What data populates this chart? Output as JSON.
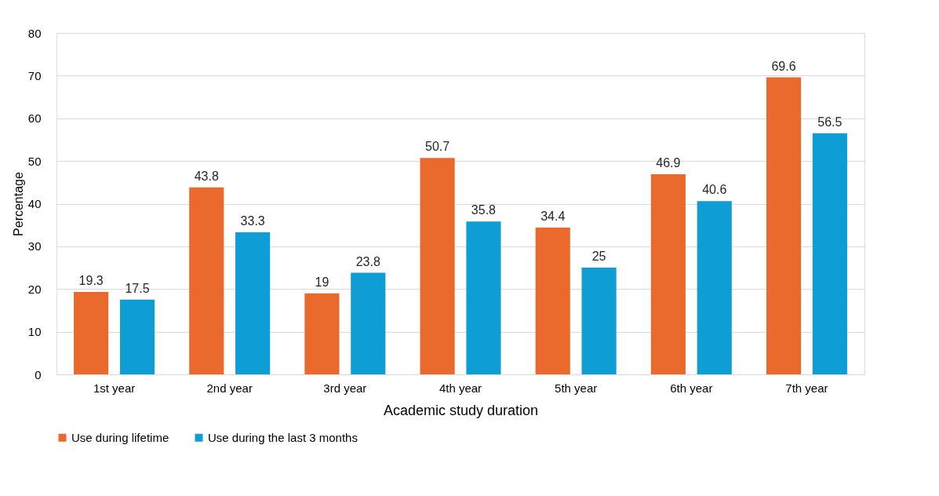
{
  "chart_data": {
    "type": "bar",
    "xlabel": "Academic study duration",
    "ylabel": "Percentage",
    "categories": [
      "1st year",
      "2nd year",
      "3rd year",
      "4th year",
      "5th year",
      "6th year",
      "7th year"
    ],
    "series": [
      {
        "name": "Use during lifetime",
        "color": "#e96a2c",
        "values": [
          19.3,
          43.8,
          19,
          50.7,
          34.4,
          46.9,
          69.6
        ]
      },
      {
        "name": "Use during the last 3 months",
        "color": "#0f9dd6",
        "values": [
          17.5,
          33.3,
          23.8,
          35.8,
          25,
          40.6,
          56.5
        ]
      }
    ],
    "ylim": [
      0,
      80
    ],
    "yticks": [
      0,
      10,
      20,
      30,
      40,
      50,
      60,
      70,
      80
    ],
    "grid": "y",
    "legend": "bottom",
    "data_labels": true
  }
}
